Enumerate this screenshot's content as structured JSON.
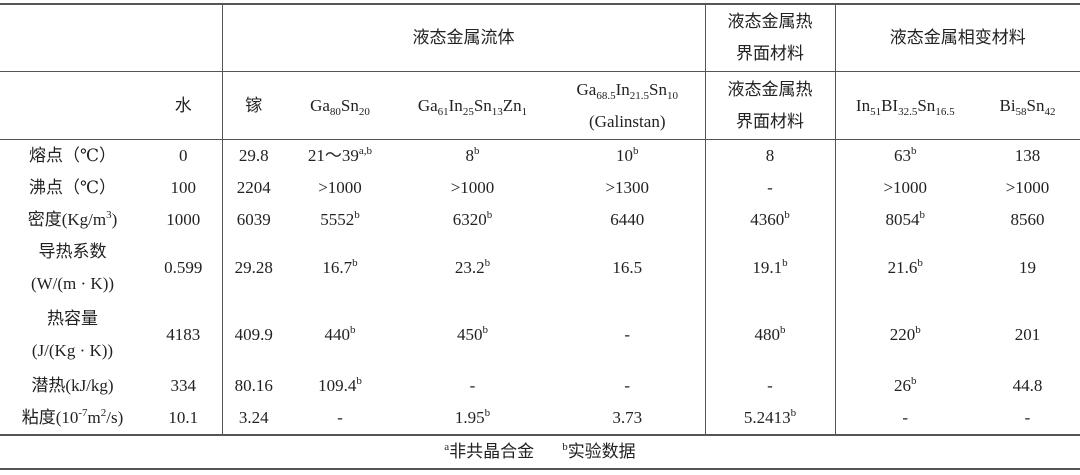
{
  "groups": {
    "fluid": "液态金属流体",
    "tim": "液态金属热\n界面材料",
    "pcm": "液态金属相变材料"
  },
  "columns": [
    {
      "name": "水"
    },
    {
      "name": "镓"
    },
    {
      "formula": [
        [
          "Ga",
          "80"
        ],
        [
          "Sn",
          "20"
        ]
      ]
    },
    {
      "formula": [
        [
          "Ga",
          "61"
        ],
        [
          "In",
          "25"
        ],
        [
          "Sn",
          "13"
        ],
        [
          "Zn",
          "1"
        ]
      ]
    },
    {
      "formula": [
        [
          "Ga",
          "68.5"
        ],
        [
          "In",
          "21.5"
        ],
        [
          "Sn",
          "10"
        ]
      ],
      "note": "(Galinstan)"
    },
    {
      "name": "液态金属热\n界面材料"
    },
    {
      "formula": [
        [
          "In",
          "51"
        ],
        [
          "BI",
          "32.5"
        ],
        [
          "Sn",
          "16.5"
        ]
      ]
    },
    {
      "formula": [
        [
          "Bi",
          "58"
        ],
        [
          "Sn",
          "42"
        ]
      ]
    }
  ],
  "rows": [
    {
      "label": [
        {
          "t": "熔点（℃）"
        }
      ],
      "cells": [
        {
          "v": "0"
        },
        {
          "v": "29.8"
        },
        {
          "v": "21～39",
          "sup": "a,b"
        },
        {
          "v": "8",
          "sup": "b"
        },
        {
          "v": "10",
          "sup": "b"
        },
        {
          "v": "8"
        },
        {
          "v": "63",
          "sup": "b"
        },
        {
          "v": "138"
        }
      ]
    },
    {
      "label": [
        {
          "t": "沸点（℃）"
        }
      ],
      "cells": [
        {
          "v": "100"
        },
        {
          "v": "2204"
        },
        {
          "v": ">1000"
        },
        {
          "v": ">1000"
        },
        {
          "v": ">1300"
        },
        {
          "v": "-"
        },
        {
          "v": ">1000"
        },
        {
          "v": ">1000"
        }
      ]
    },
    {
      "label": [
        {
          "t": "密度(Kg/m"
        },
        {
          "sup": "3"
        },
        {
          "t": ")"
        }
      ],
      "cells": [
        {
          "v": "1000"
        },
        {
          "v": "6039"
        },
        {
          "v": "5552",
          "sup": "b"
        },
        {
          "v": "6320",
          "sup": "b"
        },
        {
          "v": "6440"
        },
        {
          "v": "4360",
          "sup": "b"
        },
        {
          "v": "8054",
          "sup": "b"
        },
        {
          "v": "8560"
        }
      ]
    },
    {
      "label": [
        {
          "t": "导热系数"
        },
        {
          "br": true
        },
        {
          "t": "(W/(m · K))"
        }
      ],
      "cells": [
        {
          "v": "0.599"
        },
        {
          "v": "29.28"
        },
        {
          "v": "16.7",
          "sup": "b"
        },
        {
          "v": "23.2",
          "sup": "b"
        },
        {
          "v": "16.5"
        },
        {
          "v": "19.1",
          "sup": "b"
        },
        {
          "v": "21.6",
          "sup": "b"
        },
        {
          "v": "19"
        }
      ]
    },
    {
      "label": [
        {
          "t": "热容量"
        },
        {
          "br": true
        },
        {
          "t": "(J/(Kg · K))"
        }
      ],
      "cells": [
        {
          "v": "4183"
        },
        {
          "v": "409.9"
        },
        {
          "v": "440",
          "sup": "b"
        },
        {
          "v": "450",
          "sup": "b"
        },
        {
          "v": "-"
        },
        {
          "v": "480",
          "sup": "b"
        },
        {
          "v": "220",
          "sup": "b"
        },
        {
          "v": "201"
        }
      ]
    },
    {
      "label": [
        {
          "t": "潜热(kJ/kg)"
        }
      ],
      "cells": [
        {
          "v": "334"
        },
        {
          "v": "80.16"
        },
        {
          "v": "109.4",
          "sup": "b"
        },
        {
          "v": "-"
        },
        {
          "v": "-"
        },
        {
          "v": "-"
        },
        {
          "v": "26",
          "sup": "b"
        },
        {
          "v": "44.8"
        }
      ]
    },
    {
      "label": [
        {
          "t": "粘度(10"
        },
        {
          "sup": "-7"
        },
        {
          "t": "m"
        },
        {
          "sup": "2"
        },
        {
          "t": "/s)"
        }
      ],
      "cells": [
        {
          "v": "10.1"
        },
        {
          "v": "3.24"
        },
        {
          "v": "-"
        },
        {
          "v": "1.95",
          "sup": "b"
        },
        {
          "v": "3.73"
        },
        {
          "v": "5.2413",
          "sup": "b"
        },
        {
          "v": "-"
        },
        {
          "v": "-"
        }
      ]
    }
  ],
  "footnote": {
    "a_mark": "a",
    "a_text": "非共晶合金",
    "b_mark": "b",
    "b_text": "实验数据"
  }
}
